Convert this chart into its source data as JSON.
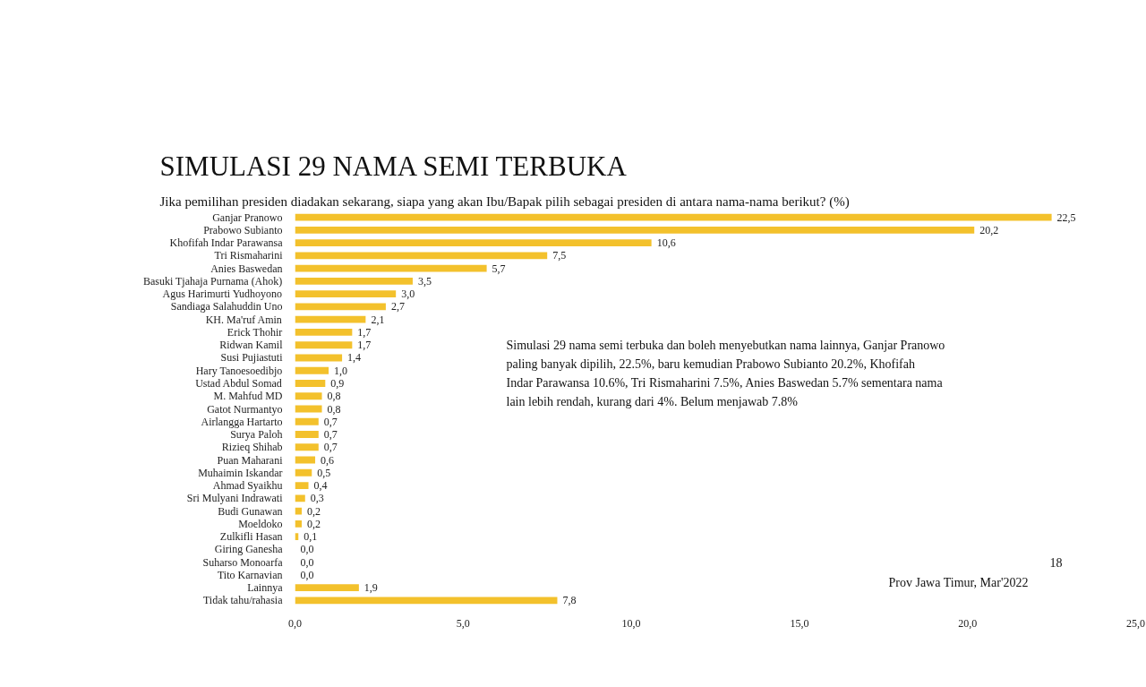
{
  "chart_data": {
    "type": "bar",
    "orientation": "horizontal",
    "title": "SIMULASI 29 NAMA SEMI TERBUKA",
    "subtitle": "Jika pemilihan presiden diadakan sekarang, siapa yang akan Ibu/Bapak pilih sebagai presiden di antara nama-nama berikut? (%)",
    "categories": [
      "Ganjar Pranowo",
      "Prabowo Subianto",
      "Khofifah Indar Parawansa",
      "Tri Rismaharini",
      "Anies Baswedan",
      "Basuki Tjahaja Purnama (Ahok)",
      "Agus Harimurti Yudhoyono",
      "Sandiaga Salahuddin Uno",
      "KH. Ma'ruf Amin",
      "Erick Thohir",
      "Ridwan Kamil",
      "Susi Pujiastuti",
      "Hary Tanoesoedibjo",
      "Ustad Abdul Somad",
      "M. Mahfud MD",
      "Gatot Nurmantyo",
      "Airlangga Hartarto",
      "Surya Paloh",
      "Rizieq Shihab",
      "Puan Maharani",
      "Muhaimin Iskandar",
      "Ahmad Syaikhu",
      "Sri Mulyani Indrawati",
      "Budi Gunawan",
      "Moeldoko",
      "Zulkifli Hasan",
      "Giring Ganesha",
      "Suharso Monoarfa",
      "Tito Karnavian",
      "Lainnya",
      "Tidak tahu/rahasia"
    ],
    "values": [
      22.5,
      20.2,
      10.6,
      7.5,
      5.7,
      3.5,
      3.0,
      2.7,
      2.1,
      1.7,
      1.7,
      1.4,
      1.0,
      0.9,
      0.8,
      0.8,
      0.7,
      0.7,
      0.7,
      0.6,
      0.5,
      0.4,
      0.3,
      0.2,
      0.2,
      0.1,
      0.0,
      0.0,
      0.0,
      1.9,
      7.8
    ],
    "value_labels": [
      "22,5",
      "20,2",
      "10,6",
      "7,5",
      "5,7",
      "3,5",
      "3,0",
      "2,7",
      "2,1",
      "1,7",
      "1,7",
      "1,4",
      "1,0",
      "0,9",
      "0,8",
      "0,8",
      "0,7",
      "0,7",
      "0,7",
      "0,6",
      "0,5",
      "0,4",
      "0,3",
      "0,2",
      "0,2",
      "0,1",
      "0,0",
      "0,0",
      "0,0",
      "1,9",
      "7,8"
    ],
    "color": "#f3c12c",
    "xlim": [
      0,
      25
    ],
    "xticks": [
      {
        "value": 0,
        "label": "0,0"
      },
      {
        "value": 5,
        "label": "5,0"
      },
      {
        "value": 10,
        "label": "10,0"
      },
      {
        "value": 15,
        "label": "15,0"
      },
      {
        "value": 20,
        "label": "20,0"
      },
      {
        "value": 25,
        "label": "25,0"
      }
    ],
    "grid": false,
    "annotations": [
      "Simulasi 29 nama semi terbuka dan boleh menyebutkan nama lainnya, Ganjar Pranowo paling banyak dipilih, 22.5%, baru kemudian Prabowo Subianto 20.2%, Khofifah Indar Parawansa 10.6%, Tri Rismaharini 7.5%, Anies Baswedan 5.7% sementara nama lain lebih rendah, kurang dari 4%. Belum menjawab 7.8%",
      "18",
      "Prov Jawa Timur, Mar'2022"
    ]
  }
}
